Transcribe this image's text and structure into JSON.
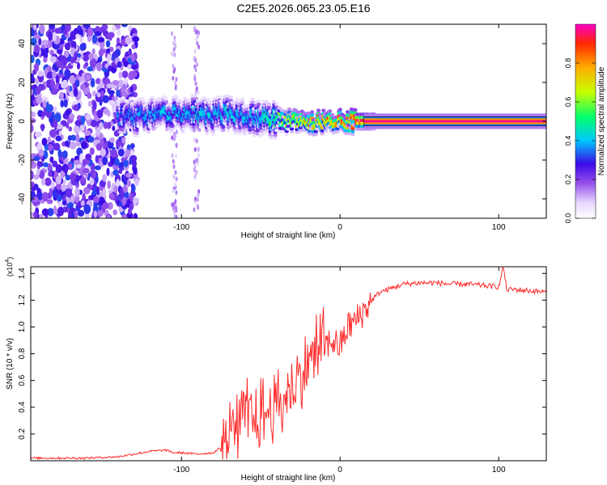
{
  "page_title": "C2E5.2026.065.23.05.E16",
  "colorbar": {
    "label": "Normalized spectral amplitude",
    "ticks": [
      "0.0",
      "0.2",
      "0.4",
      "0.6",
      "0.8"
    ],
    "tick_values": [
      0.0,
      0.2,
      0.4,
      0.6,
      0.8
    ],
    "colors": [
      "#ffffff",
      "#e6d8ff",
      "#8a2be2",
      "#2a0dff",
      "#00c8ff",
      "#00ff66",
      "#c8ff00",
      "#ffb000",
      "#ff2a00",
      "#ff00c8"
    ]
  },
  "chart_data": [
    {
      "type": "heatmap",
      "title": "C2E5.2026.065.23.05.E16",
      "xlabel": "Height of straight line (km)",
      "ylabel": "Frequency (Hz)",
      "xlim": [
        -195,
        130
      ],
      "ylim": [
        -50,
        50
      ],
      "x_ticks": [
        -100,
        0,
        100
      ],
      "x_tick_labels": [
        "-100",
        "0",
        "100"
      ],
      "y_ticks": [
        -40,
        -20,
        0,
        20,
        40
      ],
      "y_tick_labels": [
        "-40",
        "-20",
        "0",
        "20",
        "40"
      ],
      "colorbar_label": "Normalized spectral amplitude",
      "ridge": {
        "x": [
          -140,
          -130,
          -120,
          -110,
          -100,
          -90,
          -80,
          -70,
          -60,
          -50,
          -40,
          -30,
          -20,
          -10,
          0,
          10,
          20,
          130
        ],
        "y": [
          3,
          2,
          3,
          4,
          3,
          4,
          3,
          4,
          3,
          1,
          1,
          0,
          -1,
          0,
          1,
          0,
          0,
          0
        ],
        "amplitude": [
          0.35,
          0.4,
          0.38,
          0.42,
          0.4,
          0.45,
          0.42,
          0.45,
          0.4,
          0.45,
          0.55,
          0.7,
          0.8,
          0.85,
          0.9,
          0.95,
          0.97,
          0.97
        ]
      },
      "noise_region_x": [
        -195,
        -140
      ]
    },
    {
      "type": "line",
      "title": "",
      "xlabel": "Height of straight line (km)",
      "ylabel": "SNR (10 * v/v)",
      "y_multiplier_label": "(x10",
      "y_multiplier_exp": "4",
      "xlim": [
        -195,
        130
      ],
      "ylim": [
        0,
        1.45
      ],
      "x_ticks": [
        -100,
        0,
        100
      ],
      "x_tick_labels": [
        "-100",
        "0",
        "100"
      ],
      "y_ticks": [
        0.2,
        0.4,
        0.6,
        0.8,
        1.0,
        1.2,
        1.4
      ],
      "y_tick_labels": [
        "0.2",
        "0.4",
        "0.6",
        "0.8",
        "1.0",
        "1.2",
        "1.4"
      ],
      "series": [
        {
          "name": "SNR",
          "color": "#ff2a2a",
          "x": [
            -195,
            -180,
            -160,
            -140,
            -130,
            -120,
            -110,
            -105,
            -100,
            -90,
            -80,
            -75,
            -70,
            -65,
            -60,
            -55,
            -50,
            -45,
            -40,
            -35,
            -30,
            -25,
            -20,
            -15,
            -10,
            -5,
            0,
            5,
            10,
            15,
            20,
            25,
            30,
            40,
            50,
            60,
            70,
            80,
            90,
            100,
            103,
            105,
            110,
            120,
            130
          ],
          "y": [
            0.02,
            0.02,
            0.02,
            0.03,
            0.05,
            0.07,
            0.08,
            0.06,
            0.06,
            0.05,
            0.06,
            0.1,
            0.2,
            0.3,
            0.35,
            0.3,
            0.32,
            0.38,
            0.42,
            0.45,
            0.55,
            0.6,
            0.75,
            0.82,
            0.85,
            0.9,
            0.85,
            1.0,
            1.05,
            1.12,
            1.2,
            1.26,
            1.28,
            1.32,
            1.33,
            1.33,
            1.32,
            1.32,
            1.31,
            1.3,
            1.45,
            1.28,
            1.28,
            1.27,
            1.26
          ]
        }
      ]
    }
  ]
}
